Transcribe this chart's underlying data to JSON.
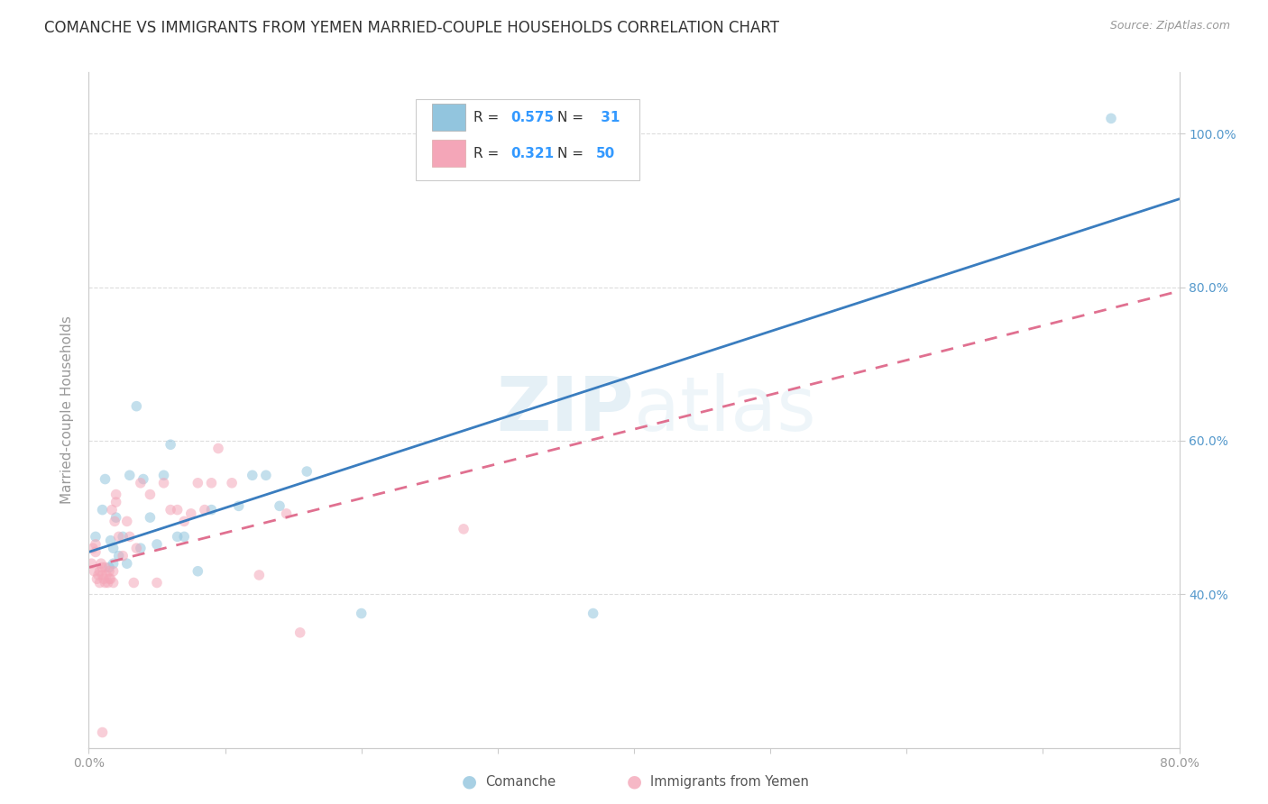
{
  "title": "COMANCHE VS IMMIGRANTS FROM YEMEN MARRIED-COUPLE HOUSEHOLDS CORRELATION CHART",
  "source": "Source: ZipAtlas.com",
  "ylabel": "Married-couple Households",
  "xlim": [
    0.0,
    0.8
  ],
  "ylim": [
    0.2,
    1.08
  ],
  "yticks": [
    0.4,
    0.6,
    0.8,
    1.0
  ],
  "ytick_labels": [
    "40.0%",
    "60.0%",
    "80.0%",
    "100.0%"
  ],
  "xticks": [
    0.0,
    0.1,
    0.2,
    0.3,
    0.4,
    0.5,
    0.6,
    0.7,
    0.8
  ],
  "xtick_labels": [
    "0.0%",
    "",
    "",
    "",
    "",
    "",
    "",
    "",
    "80.0%"
  ],
  "watermark": "ZIPatlas",
  "legend_R1": "0.575",
  "legend_N1": "31",
  "legend_R2": "0.321",
  "legend_N2": "50",
  "blue_color": "#92c5de",
  "pink_color": "#f4a6b8",
  "blue_line_color": "#3a7dbf",
  "pink_line_color": "#e07090",
  "title_color": "#333333",
  "axis_color": "#999999",
  "grid_color": "#dddddd",
  "right_axis_color": "#5599cc",
  "comanche_x": [
    0.005,
    0.01,
    0.012,
    0.015,
    0.016,
    0.018,
    0.018,
    0.02,
    0.022,
    0.025,
    0.028,
    0.03,
    0.035,
    0.038,
    0.04,
    0.045,
    0.05,
    0.055,
    0.06,
    0.065,
    0.07,
    0.08,
    0.09,
    0.11,
    0.12,
    0.13,
    0.14,
    0.16,
    0.2,
    0.37,
    0.75
  ],
  "comanche_y": [
    0.475,
    0.51,
    0.55,
    0.435,
    0.47,
    0.44,
    0.46,
    0.5,
    0.45,
    0.475,
    0.44,
    0.555,
    0.645,
    0.46,
    0.55,
    0.5,
    0.465,
    0.555,
    0.595,
    0.475,
    0.475,
    0.43,
    0.51,
    0.515,
    0.555,
    0.555,
    0.515,
    0.56,
    0.375,
    0.375,
    1.02
  ],
  "yemen_x": [
    0.002,
    0.003,
    0.004,
    0.005,
    0.005,
    0.006,
    0.007,
    0.008,
    0.008,
    0.009,
    0.01,
    0.01,
    0.011,
    0.012,
    0.012,
    0.013,
    0.014,
    0.015,
    0.015,
    0.016,
    0.017,
    0.018,
    0.018,
    0.019,
    0.02,
    0.02,
    0.022,
    0.025,
    0.028,
    0.03,
    0.033,
    0.035,
    0.038,
    0.045,
    0.05,
    0.055,
    0.06,
    0.065,
    0.07,
    0.075,
    0.08,
    0.085,
    0.09,
    0.095,
    0.105,
    0.125,
    0.145,
    0.155,
    0.275,
    0.01
  ],
  "yemen_y": [
    0.44,
    0.46,
    0.43,
    0.455,
    0.465,
    0.42,
    0.425,
    0.415,
    0.43,
    0.44,
    0.425,
    0.435,
    0.42,
    0.415,
    0.435,
    0.425,
    0.415,
    0.42,
    0.43,
    0.42,
    0.51,
    0.415,
    0.43,
    0.495,
    0.52,
    0.53,
    0.475,
    0.45,
    0.495,
    0.475,
    0.415,
    0.46,
    0.545,
    0.53,
    0.415,
    0.545,
    0.51,
    0.51,
    0.495,
    0.505,
    0.545,
    0.51,
    0.545,
    0.59,
    0.545,
    0.425,
    0.505,
    0.35,
    0.485,
    0.22
  ],
  "blue_line_x0": 0.0,
  "blue_line_y0": 0.455,
  "blue_line_x1": 0.8,
  "blue_line_y1": 0.915,
  "pink_line_x0": 0.0,
  "pink_line_y0": 0.435,
  "pink_line_x1": 0.8,
  "pink_line_y1": 0.795,
  "title_fontsize": 12,
  "label_fontsize": 11,
  "tick_fontsize": 10,
  "marker_size": 70,
  "marker_alpha": 0.55,
  "line_width": 2.0
}
